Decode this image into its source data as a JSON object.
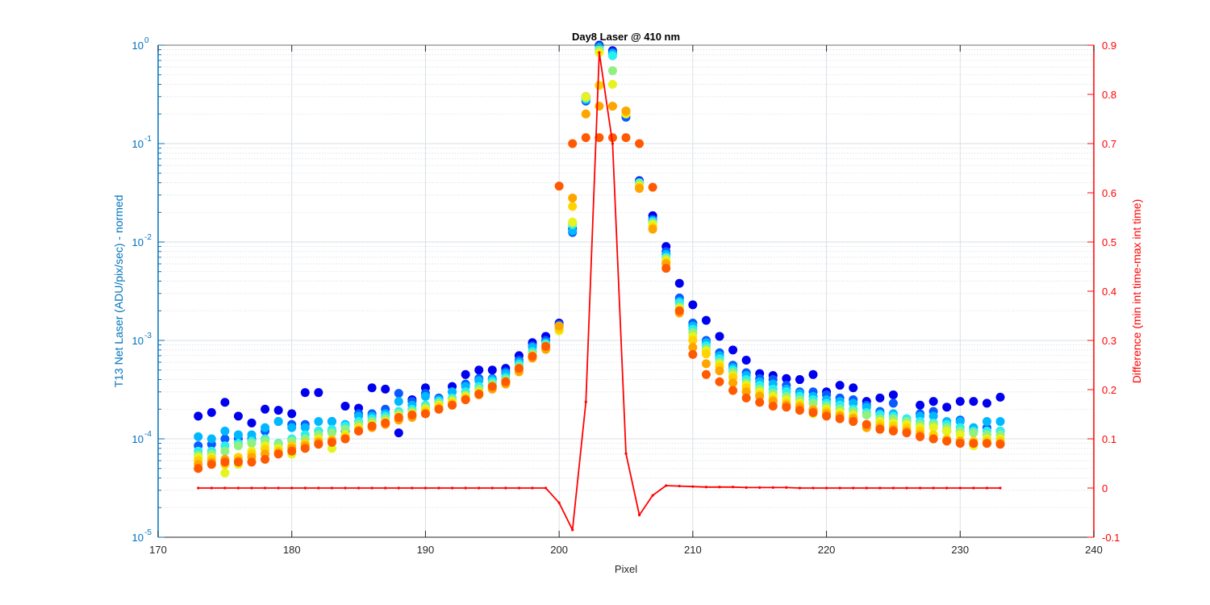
{
  "chart_data": {
    "type": "scatter",
    "title": "Day8 Laser @ 410 nm",
    "xlabel": "Pixel",
    "ylabel_left": "T13 Net Laser (ADU/pix/sec) - normed",
    "ylabel_right": "Difference (min int time-max int time)",
    "x_range": [
      170,
      240
    ],
    "x_ticks": [
      170,
      180,
      190,
      200,
      210,
      220,
      230,
      240
    ],
    "y_left_scale": "log",
    "y_left_range": [
      1e-05,
      1
    ],
    "y_left_ticks": [
      {
        "exp": "-5",
        "value": 1e-05
      },
      {
        "exp": "-4",
        "value": 0.0001
      },
      {
        "exp": "-3",
        "value": 0.001
      },
      {
        "exp": "-2",
        "value": 0.01
      },
      {
        "exp": "-1",
        "value": 0.1
      },
      {
        "exp": "0",
        "value": 1
      }
    ],
    "y_right_range": [
      -0.1,
      0.9
    ],
    "y_right_ticks": [
      -0.1,
      0,
      0.1,
      0.2,
      0.3,
      0.4,
      0.5,
      0.6,
      0.7,
      0.8,
      0.9
    ],
    "grid": true,
    "colors": {
      "left_axis": "#0072bd",
      "right_axis": "#ff0000",
      "grid": "#d9dfe6",
      "series": [
        "#0000ee",
        "#0a5aff",
        "#00b8ff",
        "#28f0f0",
        "#90f080",
        "#e6f41e",
        "#ffd200",
        "#ffa500",
        "#ff5a00"
      ]
    },
    "x": [
      173,
      174,
      175,
      176,
      177,
      178,
      179,
      180,
      181,
      182,
      183,
      184,
      185,
      186,
      187,
      188,
      189,
      190,
      191,
      192,
      193,
      194,
      195,
      196,
      197,
      198,
      199,
      200,
      201,
      202,
      203,
      204,
      205,
      206,
      207,
      208,
      209,
      210,
      211,
      212,
      213,
      214,
      215,
      216,
      217,
      218,
      219,
      220,
      221,
      222,
      223,
      224,
      225,
      226,
      227,
      228,
      229,
      230,
      231,
      232,
      233
    ],
    "series": [
      {
        "values": [
          0.00017,
          0.000185,
          0.000235,
          0.00017,
          0.000145,
          0.0002,
          0.000195,
          0.00018,
          0.000295,
          0.000295,
          0.00015,
          0.000215,
          0.000205,
          0.00033,
          0.00032,
          0.000115,
          0.00025,
          0.00033,
          0.00025,
          0.00034,
          0.00045,
          0.0005,
          0.0005,
          0.00052,
          0.0007,
          0.00095,
          0.0011,
          0.0015,
          0.0135,
          0.3,
          1.0,
          0.88,
          0.2,
          0.042,
          0.0185,
          0.009,
          0.0038,
          0.0023,
          0.0016,
          0.0011,
          0.0008,
          0.00063,
          0.00046,
          0.00044,
          0.00041,
          0.0004,
          0.00045,
          0.0003,
          0.00035,
          0.00033,
          0.00024,
          0.00026,
          0.00028,
          0.00015,
          0.00022,
          0.00024,
          0.00021,
          0.00024,
          0.00024,
          0.00023,
          0.000265
        ]
      },
      {
        "values": [
          8.5e-05,
          8.8e-05,
          0.0001,
          0.0001,
          0.0001,
          0.00012,
          0.00015,
          0.00014,
          0.00014,
          0.00012,
          0.00012,
          0.00012,
          0.00018,
          0.00018,
          0.0002,
          0.00029,
          0.00024,
          0.00029,
          0.00026,
          0.0003,
          0.00036,
          0.00041,
          0.00041,
          0.00048,
          0.00063,
          0.00088,
          0.001,
          0.00145,
          0.0125,
          0.27,
          0.98,
          0.85,
          0.185,
          0.041,
          0.017,
          0.008,
          0.0027,
          0.0015,
          0.001,
          0.00075,
          0.00056,
          0.00047,
          0.00041,
          0.0004,
          0.00035,
          0.0003,
          0.0003,
          0.00028,
          0.00026,
          0.00025,
          0.00022,
          0.00019,
          0.00023,
          0.00015,
          0.00018,
          0.00019,
          0.00012,
          0.000155,
          0.00012,
          0.00013,
          0.00012
        ]
      },
      {
        "values": [
          0.000105,
          0.0001,
          0.00012,
          0.00011,
          0.00011,
          0.00013,
          0.00015,
          0.00013,
          0.00013,
          0.00015,
          0.00015,
          0.00014,
          0.00017,
          0.00017,
          0.00018,
          0.00024,
          0.00022,
          0.00027,
          0.00025,
          0.0003,
          0.00034,
          0.00039,
          0.0004,
          0.00046,
          0.0006,
          0.00085,
          0.00095,
          0.0014,
          0.013,
          0.28,
          0.95,
          0.82,
          0.2,
          0.04,
          0.0165,
          0.0075,
          0.0025,
          0.0014,
          0.00095,
          0.0007,
          0.00053,
          0.00044,
          0.00038,
          0.00036,
          0.00032,
          0.00029,
          0.00027,
          0.00025,
          0.00024,
          0.00023,
          0.00021,
          0.00018,
          0.00018,
          0.00016,
          0.00017,
          0.00017,
          0.00015,
          0.00015,
          0.00013,
          0.00015,
          0.00015
        ]
      },
      {
        "values": [
          7.5e-05,
          7.5e-05,
          8.5e-05,
          9e-05,
          9.5e-05,
          0.0001,
          9e-05,
          0.0001,
          0.00011,
          0.00012,
          0.000125,
          0.000135,
          0.00015,
          0.00016,
          0.00017,
          0.00019,
          0.0002,
          0.00022,
          0.00024,
          0.00026,
          0.0003,
          0.00034,
          0.00038,
          0.00042,
          0.00057,
          0.00077,
          0.00092,
          0.00135,
          0.015,
          0.29,
          0.92,
          0.78,
          0.205,
          0.04,
          0.016,
          0.007,
          0.0024,
          0.0013,
          0.00088,
          0.00065,
          0.0005,
          0.0004,
          0.00035,
          0.00032,
          0.0003,
          0.00027,
          0.00025,
          0.00023,
          0.00022,
          0.0002,
          0.000185,
          0.000175,
          0.00017,
          0.00016,
          0.00015,
          0.000145,
          0.00014,
          0.00013,
          0.00012,
          0.00012,
          0.00012
        ]
      },
      {
        "values": [
          6.8e-05,
          7e-05,
          7.5e-05,
          8.5e-05,
          9e-05,
          9.5e-05,
          8.8e-05,
          9.5e-05,
          0.0001,
          0.00011,
          0.000115,
          0.000125,
          0.00014,
          0.00015,
          0.00016,
          0.00018,
          0.00019,
          0.00021,
          0.00023,
          0.00025,
          0.00028,
          0.00032,
          0.00036,
          0.0004,
          0.00054,
          0.00073,
          0.00089,
          0.0013,
          0.0155,
          0.29,
          0.88,
          0.55,
          0.2,
          0.039,
          0.0155,
          0.0068,
          0.0022,
          0.0012,
          0.00082,
          0.0006,
          0.00047,
          0.00037,
          0.00032,
          0.00029,
          0.00027,
          0.00025,
          0.00023,
          0.000215,
          0.0002,
          0.00019,
          0.000175,
          0.00016,
          0.00016,
          0.00015,
          0.00014,
          0.00014,
          0.00013,
          0.00012,
          0.000115,
          0.00011,
          0.00011
        ]
      },
      {
        "values": [
          6.5e-05,
          6.5e-05,
          4.5e-05,
          5.5e-05,
          7.5e-05,
          8.5e-05,
          8e-05,
          7e-05,
          9e-05,
          0.0001,
          8e-05,
          0.00011,
          0.00013,
          0.00014,
          0.00015,
          0.00017,
          0.00018,
          0.0002,
          0.00022,
          0.00024,
          0.00027,
          0.0003,
          0.00034,
          0.00038,
          0.00052,
          0.0007,
          0.00086,
          0.00125,
          0.016,
          0.3,
          0.84,
          0.4,
          0.2,
          0.037,
          0.015,
          0.0065,
          0.0021,
          0.0011,
          0.00078,
          0.00057,
          0.00044,
          0.00035,
          0.0003,
          0.00027,
          0.00025,
          0.00023,
          0.00018,
          0.0002,
          0.000185,
          0.000175,
          0.00013,
          0.00015,
          0.000145,
          0.00014,
          0.00013,
          0.00013,
          0.00012,
          0.00011,
          8.5e-05,
          0.0001,
          0.0001
        ]
      },
      {
        "values": [
          6e-05,
          6.2e-05,
          5.5e-05,
          6.5e-05,
          7e-05,
          7.8e-05,
          7.5e-05,
          8.5e-05,
          9e-05,
          9.5e-05,
          9.8e-05,
          0.000105,
          0.000125,
          0.000135,
          0.000145,
          0.00016,
          0.00017,
          0.00019,
          0.00021,
          0.00023,
          0.00026,
          0.00029,
          0.00033,
          0.00037,
          0.0005,
          0.00068,
          0.00083,
          0.0013,
          0.023,
          0.2,
          0.39,
          0.24,
          0.21,
          0.036,
          0.014,
          0.0062,
          0.002,
          0.001,
          0.00073,
          0.00054,
          0.00042,
          0.00033,
          0.00028,
          0.00025,
          0.00023,
          0.00022,
          0.0002,
          0.00019,
          0.000175,
          0.000165,
          0.00014,
          0.00014,
          0.000135,
          0.00013,
          0.00012,
          0.00011,
          0.0001,
          9.5e-05,
          9.5e-05,
          9.5e-05,
          9.5e-05
        ]
      },
      {
        "values": [
          5.5e-05,
          5.8e-05,
          6.2e-05,
          6e-05,
          6.5e-05,
          7e-05,
          7.2e-05,
          8e-05,
          8.5e-05,
          9.2e-05,
          9.5e-05,
          0.0001,
          0.00012,
          0.00013,
          0.00014,
          0.000155,
          0.000165,
          0.00018,
          0.0002,
          0.00022,
          0.00025,
          0.00028,
          0.00032,
          0.00036,
          0.00048,
          0.00066,
          0.00081,
          0.0014,
          0.028,
          0.2,
          0.24,
          0.24,
          0.215,
          0.035,
          0.0135,
          0.006,
          0.0019,
          0.00085,
          0.00058,
          0.00049,
          0.00037,
          0.0003,
          0.00027,
          0.00024,
          0.00022,
          0.00021,
          0.000195,
          0.00018,
          0.00017,
          0.00016,
          0.00013,
          0.00013,
          0.000125,
          0.00012,
          0.00011,
          0.0001,
          9.5e-05,
          9.5e-05,
          9e-05,
          9e-05,
          9e-05
        ]
      },
      {
        "values": [
          5e-05,
          5.5e-05,
          5.8e-05,
          5.8e-05,
          5.8e-05,
          6.2e-05,
          7e-05,
          7.5e-05,
          8e-05,
          8.8e-05,
          9.2e-05,
          0.0001,
          0.00012,
          0.000135,
          0.000145,
          0.000165,
          0.000175,
          0.00018,
          0.0002,
          0.00022,
          0.00025,
          0.000285,
          0.00034,
          0.00038,
          0.00052,
          0.00069,
          0.00087,
          0.037,
          0.1,
          0.115,
          0.115,
          0.115,
          0.115,
          0.1,
          0.036,
          0.0054,
          0.002,
          0.00072,
          0.00045,
          0.00038,
          0.00031,
          0.00026,
          0.000235,
          0.000215,
          0.00021,
          0.000195,
          0.000185,
          0.00017,
          0.00016,
          0.00015,
          0.00014,
          0.000125,
          0.00012,
          0.000115,
          0.000105,
          0.0001,
          9.5e-05,
          9e-05,
          9e-05,
          9e-05,
          8.8e-05
        ]
      }
    ],
    "difference_line": {
      "x": [
        173,
        174,
        175,
        176,
        177,
        178,
        179,
        180,
        181,
        182,
        183,
        184,
        185,
        186,
        187,
        188,
        189,
        190,
        191,
        192,
        193,
        194,
        195,
        196,
        197,
        198,
        199,
        200,
        201,
        202,
        203,
        204,
        205,
        206,
        207,
        208,
        209,
        210,
        211,
        212,
        213,
        214,
        215,
        216,
        217,
        218,
        219,
        220,
        221,
        222,
        223,
        224,
        225,
        226,
        227,
        228,
        229,
        230,
        231,
        232,
        233
      ],
      "values": [
        0,
        0,
        0,
        0,
        0,
        0,
        0,
        0,
        0,
        0,
        0,
        0,
        0,
        0,
        0,
        0,
        0,
        0,
        0,
        0,
        0,
        0,
        0,
        0,
        0,
        0,
        0,
        -0.03,
        -0.085,
        0.175,
        0.885,
        0.7,
        0.07,
        -0.055,
        -0.015,
        0.005,
        0.004,
        0.003,
        0.002,
        0.002,
        0.002,
        0.001,
        0.001,
        0.001,
        0.001,
        0,
        0,
        0,
        0,
        0,
        0,
        0,
        0,
        0,
        0,
        0,
        0,
        0,
        0,
        0,
        0
      ],
      "color": "#ff0000"
    }
  }
}
